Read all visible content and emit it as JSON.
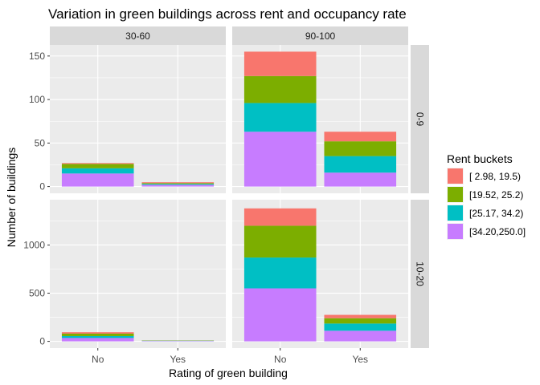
{
  "chart_data": {
    "type": "bar",
    "stacked": true,
    "title": "Variation in green buildings across rent and occupancy rate",
    "xlabel": "Rating of green building",
    "ylabel": "Number of buildings",
    "categories": [
      "No",
      "Yes"
    ],
    "facet_columns": [
      "30-60",
      "90-100"
    ],
    "facet_rows": [
      "0-9",
      "10-20"
    ],
    "legend_title": "Rent buckets",
    "legend_placement": "right",
    "grid": true,
    "series_order": [
      "[ 2.98, 19.5)",
      "[19.52, 25.2)",
      "[25.17, 34.2)",
      "[34.20,250.0]"
    ],
    "colors": {
      "[ 2.98, 19.5)": "#f8766d",
      "[19.52, 25.2)": "#7cae00",
      "[25.17, 34.2)": "#00bfc4",
      "[34.20,250.0]": "#c77cff"
    },
    "rows": [
      {
        "label": "0-9",
        "ylim": [
          -7.75,
          162.75
        ],
        "yticks": [
          0,
          50,
          100,
          150
        ],
        "panels": [
          {
            "column": "30-60",
            "bars": [
              {
                "category": "No",
                "values": [
                  1,
                  5,
                  6,
                  15
                ]
              },
              {
                "category": "Yes",
                "values": [
                  1,
                  1,
                  1,
                  2
                ]
              }
            ]
          },
          {
            "column": "90-100",
            "bars": [
              {
                "category": "No",
                "values": [
                  28,
                  31,
                  33,
                  63
                ]
              },
              {
                "category": "Yes",
                "values": [
                  11,
                  17,
                  19,
                  16
                ]
              }
            ]
          }
        ]
      },
      {
        "label": "10-20",
        "ylim": [
          -70,
          1470
        ],
        "yticks": [
          0,
          500,
          1000
        ],
        "panels": [
          {
            "column": "30-60",
            "bars": [
              {
                "category": "No",
                "values": [
                  15,
                  25,
                  20,
                  35
                ]
              },
              {
                "category": "Yes",
                "values": [
                  1,
                  2,
                  3,
                  4
                ]
              }
            ]
          },
          {
            "column": "90-100",
            "bars": [
              {
                "category": "No",
                "values": [
                  180,
                  330,
                  320,
                  550
                ]
              },
              {
                "category": "Yes",
                "values": [
                  35,
                  55,
                  75,
                  110
                ]
              }
            ]
          }
        ]
      }
    ]
  }
}
